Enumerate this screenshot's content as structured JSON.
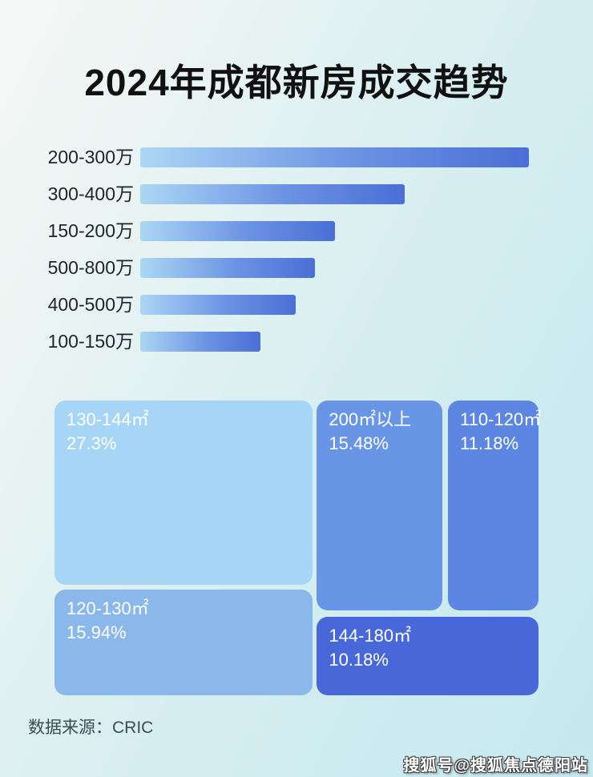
{
  "title": "2024年成都新房成交趋势",
  "source": {
    "label": "数据来源：CRIC"
  },
  "watermark": {
    "text": "搜狐号@搜狐焦点德阳站"
  },
  "colors": {
    "background_start": "#f6f8f7",
    "background_end": "#c6e9ee",
    "bar_gradient_start": "#abd7f5",
    "bar_gradient_mid": "#6b93e3",
    "bar_gradient_end": "#4a6fd6",
    "title_text": "#111111",
    "bar_label_text": "#1f2429",
    "source_text": "#3c4b55",
    "block_text": "#ffffff"
  },
  "chart_data": [
    {
      "type": "bar",
      "orientation": "horizontal",
      "title": "",
      "xlabel": "",
      "ylabel": "",
      "grid": false,
      "legend": false,
      "categories": [
        "200-300万",
        "300-400万",
        "150-200万",
        "500-800万",
        "400-500万",
        "100-150万"
      ],
      "values": [
        100,
        68,
        50,
        45,
        40,
        31
      ],
      "values_note": "no numeric labels shown in image; values are bar lengths estimated as percent of the longest bar"
    },
    {
      "type": "treemap",
      "title": "",
      "items": [
        {
          "label": "130-144㎡",
          "value": 27.3,
          "display": "27.3%",
          "color": "#a7d5f6"
        },
        {
          "label": "120-130㎡",
          "value": 15.94,
          "display": "15.94%",
          "color": "#8bb8eb"
        },
        {
          "label": "200㎡以上",
          "value": 15.48,
          "display": "15.48%",
          "color": "#6995e6"
        },
        {
          "label": "110-120㎡",
          "value": 11.18,
          "display": "11.18%",
          "color": "#5c86e2"
        },
        {
          "label": "144-180㎡",
          "value": 10.18,
          "display": "10.18%",
          "color": "#4868da"
        }
      ]
    }
  ]
}
